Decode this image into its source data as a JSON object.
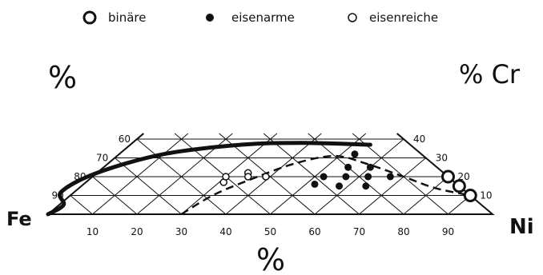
{
  "legend": [
    {
      "symbol": "large-open-circle",
      "label": "binäre"
    },
    {
      "symbol": "filled-dot",
      "label": "eisenarme"
    },
    {
      "symbol": "small-open-circle",
      "label": "eisenreiche"
    }
  ],
  "corners": {
    "left": "Fe",
    "right": "Ni"
  },
  "axis_labels": {
    "left_percent": "%",
    "right_percent_cr": "% Cr",
    "bottom_percent": "%"
  },
  "ticks": {
    "bottom": [
      "10",
      "20",
      "30",
      "40",
      "50",
      "60",
      "70",
      "80",
      "90"
    ],
    "left": [
      "60",
      "70",
      "80",
      "90"
    ],
    "right": [
      "40",
      "30",
      "20",
      "10"
    ]
  },
  "colors": {
    "ink": "#111111",
    "background": "#ffffff"
  },
  "chart_data": {
    "type": "scatter",
    "coordinate_system": "ternary Fe-Ni-Cr",
    "series": [
      {
        "name": "binäre",
        "marker": "large-open-circle",
        "points": [
          {
            "ni": 80,
            "cr": 20
          },
          {
            "ni": 85,
            "cr": 15
          },
          {
            "ni": 90,
            "cr": 10
          }
        ]
      },
      {
        "name": "eisenarme",
        "marker": "filled-dot",
        "points": [
          {
            "ni": 53,
            "cr": 32
          },
          {
            "ni": 55,
            "cr": 25
          },
          {
            "ni": 60,
            "cr": 25
          },
          {
            "ni": 52,
            "cr": 20
          },
          {
            "ni": 57,
            "cr": 20
          },
          {
            "ni": 62,
            "cr": 20
          },
          {
            "ni": 67,
            "cr": 20
          },
          {
            "ni": 52,
            "cr": 16
          },
          {
            "ni": 58,
            "cr": 15
          },
          {
            "ni": 64,
            "cr": 15
          }
        ]
      },
      {
        "name": "eisenreiche",
        "marker": "small-open-circle",
        "points": [
          {
            "ni": 34,
            "cr": 22
          },
          {
            "ni": 35,
            "cr": 20
          },
          {
            "ni": 39,
            "cr": 20
          },
          {
            "ni": 31,
            "cr": 17
          },
          {
            "ni": 30,
            "cr": 20
          }
        ]
      }
    ],
    "boundaries": [
      {
        "style": "solid-thick",
        "points": [
          {
            "ni": 0,
            "cr": 0
          },
          {
            "ni": 1,
            "cr": 5
          },
          {
            "ni": -3,
            "cr": 12
          },
          {
            "ni": 0,
            "cr": 22
          },
          {
            "ni": 10,
            "cr": 32
          },
          {
            "ni": 25,
            "cr": 37
          },
          {
            "ni": 38,
            "cr": 38
          },
          {
            "ni": 54,
            "cr": 37
          }
        ]
      },
      {
        "style": "dashed",
        "points": [
          {
            "ni": 30,
            "cr": 0
          },
          {
            "ni": 32,
            "cr": 10
          },
          {
            "ni": 36,
            "cr": 18
          },
          {
            "ni": 42,
            "cr": 27
          },
          {
            "ni": 49,
            "cr": 31
          },
          {
            "ni": 58,
            "cr": 27
          },
          {
            "ni": 70,
            "cr": 20
          },
          {
            "ni": 80,
            "cr": 14
          },
          {
            "ni": 90,
            "cr": 10
          }
        ]
      }
    ]
  }
}
